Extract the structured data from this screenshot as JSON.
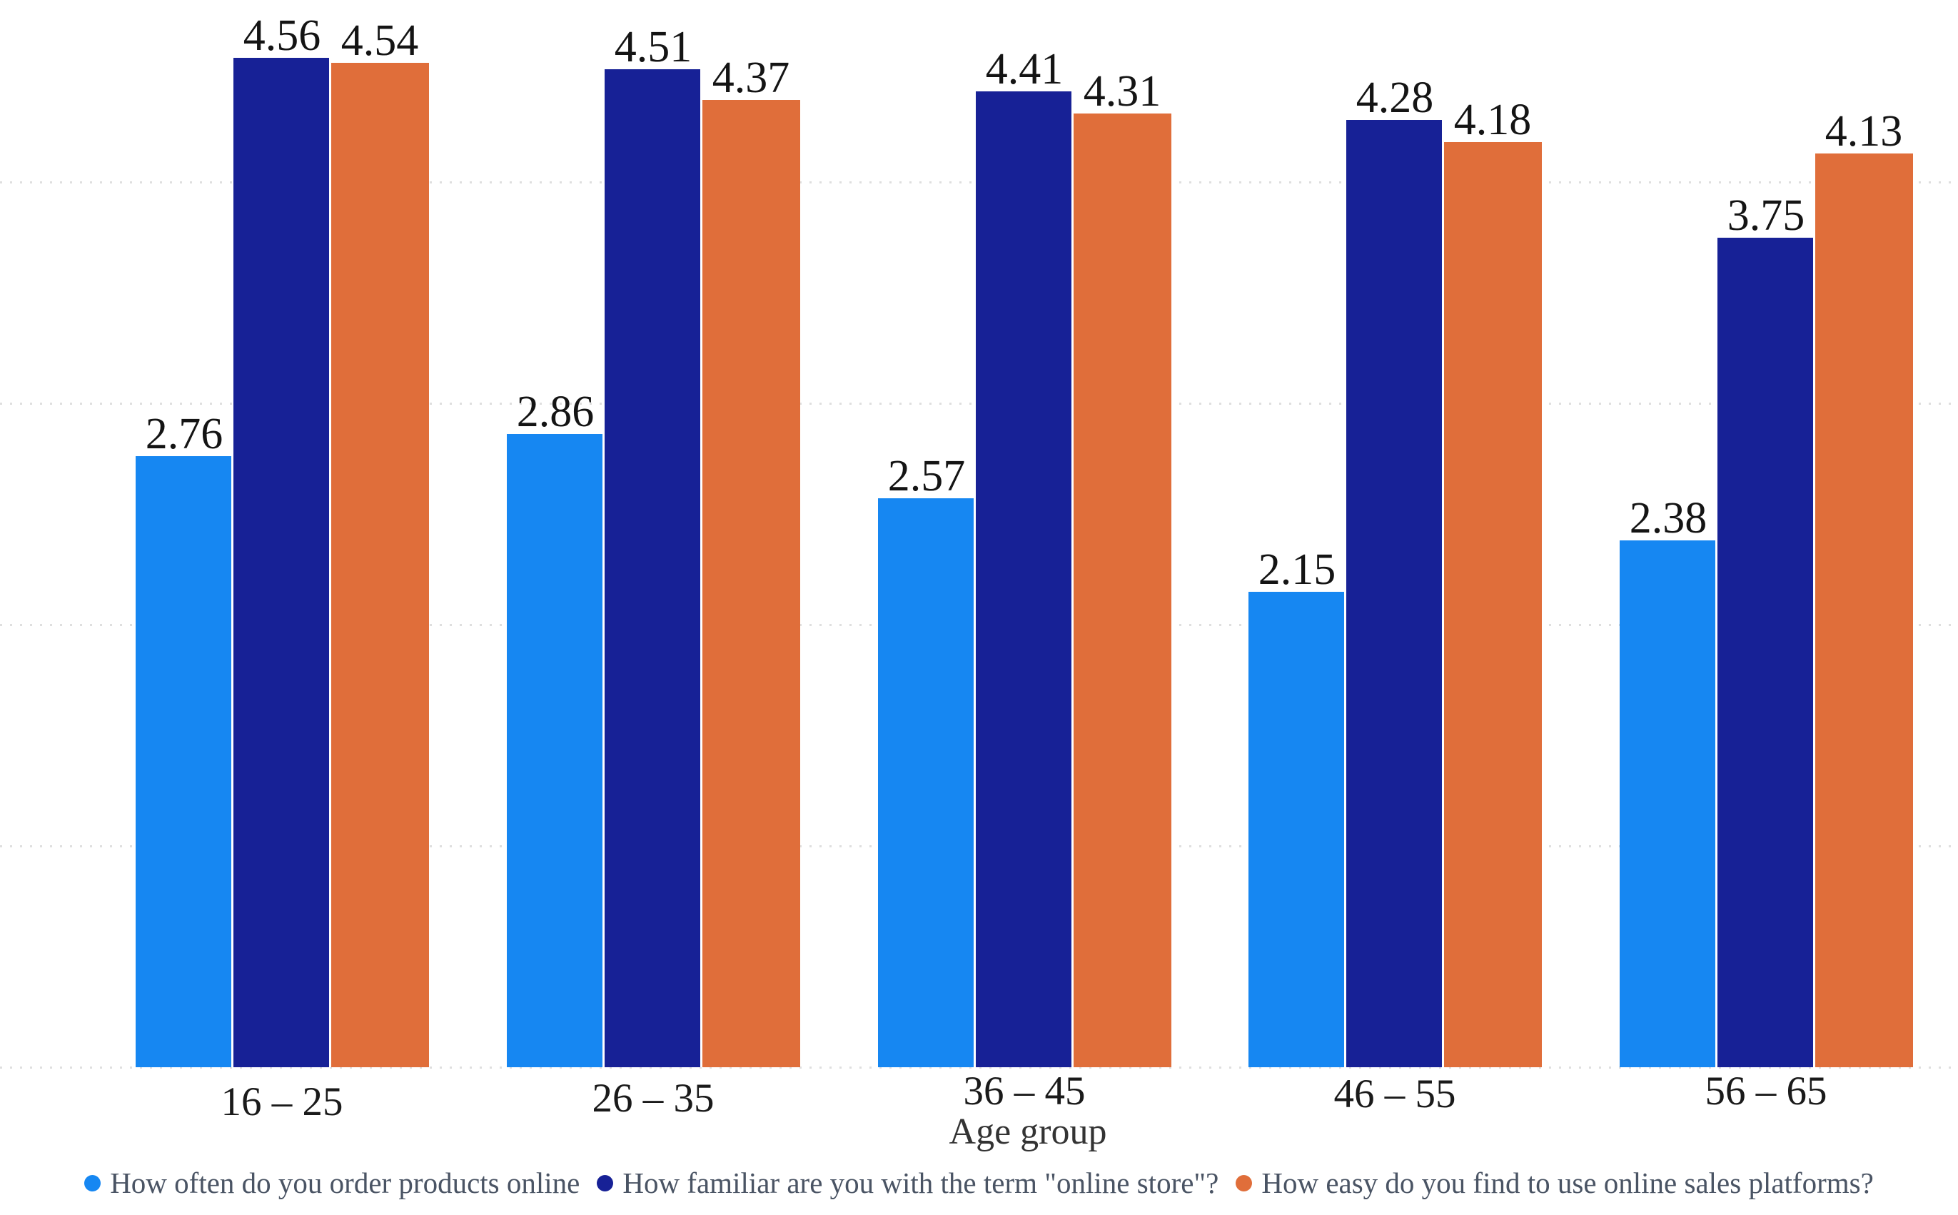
{
  "chart_data": {
    "type": "bar",
    "title": "",
    "xlabel": "Age group",
    "ylabel": "",
    "categories": [
      "16 – 25",
      "26 – 35",
      "36 – 45",
      "46 – 55",
      "56 – 65"
    ],
    "series": [
      {
        "name": "How often do you order products online",
        "color": "#1687f2",
        "values": [
          2.76,
          2.86,
          2.57,
          2.15,
          2.38
        ]
      },
      {
        "name": "How familiar are you with the term \"online store\"?",
        "color": "#172196",
        "values": [
          4.56,
          4.51,
          4.41,
          4.28,
          3.75
        ]
      },
      {
        "name": "How easy do you find to use online sales platforms?",
        "color": "#e06e3a",
        "values": [
          4.54,
          4.37,
          4.31,
          4.18,
          4.13
        ]
      }
    ],
    "ylim": [
      0,
      5
    ],
    "yaxis_tick_labels_visible": false,
    "gridline_values": [
      0,
      1,
      2,
      3,
      4
    ],
    "grid_style": "dotted horizontal, light gray",
    "value_labels": true,
    "value_label_format": "0.00",
    "legend_position": "bottom",
    "legend_marker": "circle",
    "background_color": "#ffffff",
    "grid_color": "#dfdfdf",
    "value_label_color": "#141414",
    "tick_label_color": "#1a1a1a",
    "legend_text_color": "#4a5464"
  }
}
